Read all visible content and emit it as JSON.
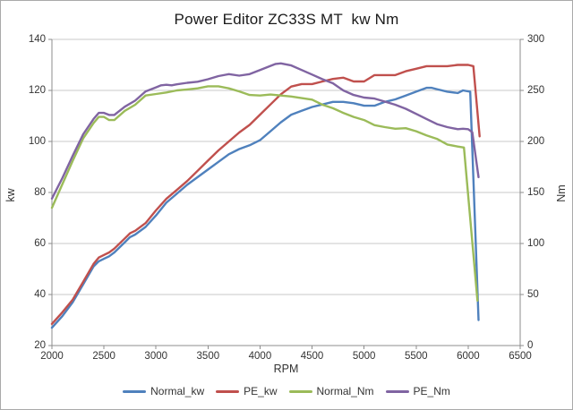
{
  "chart_data": {
    "type": "line",
    "title": "Power Editor ZC33S MT  kw Nm",
    "xlabel": "RPM",
    "ylabel_left": "kw",
    "ylabel_right": "Nm",
    "x_range": [
      2000,
      6500
    ],
    "x_ticks": [
      2000,
      2500,
      3000,
      3500,
      4000,
      4500,
      5000,
      5500,
      6000,
      6500
    ],
    "y_left_range": [
      20,
      140
    ],
    "y_left_ticks": [
      20,
      40,
      60,
      80,
      100,
      120,
      140
    ],
    "y_right_range": [
      0,
      300
    ],
    "y_right_ticks": [
      0,
      50,
      100,
      150,
      200,
      250,
      300
    ],
    "grid": "horizontal",
    "legend_position": "bottom",
    "colors": {
      "normal_kw": "#4F81BD",
      "pe_kw": "#C0504D",
      "normal_nm": "#9BBB59",
      "pe_nm": "#8064A2",
      "gridline": "#C9C9C9",
      "axis": "#8C8C8C",
      "text": "#333333"
    },
    "series": [
      {
        "name": "Normal_kw",
        "axis": "left",
        "color": "#4F81BD",
        "points": [
          [
            2000,
            27
          ],
          [
            2100,
            31.5
          ],
          [
            2200,
            37
          ],
          [
            2300,
            44
          ],
          [
            2400,
            51
          ],
          [
            2450,
            53
          ],
          [
            2500,
            54
          ],
          [
            2550,
            55
          ],
          [
            2600,
            56.5
          ],
          [
            2700,
            60.5
          ],
          [
            2750,
            62.5
          ],
          [
            2800,
            63.5
          ],
          [
            2900,
            66.5
          ],
          [
            3000,
            71
          ],
          [
            3100,
            76
          ],
          [
            3200,
            79.5
          ],
          [
            3300,
            83
          ],
          [
            3400,
            86
          ],
          [
            3500,
            89
          ],
          [
            3600,
            92
          ],
          [
            3700,
            95
          ],
          [
            3800,
            97
          ],
          [
            3900,
            98.5
          ],
          [
            4000,
            100.5
          ],
          [
            4100,
            104
          ],
          [
            4200,
            107.5
          ],
          [
            4300,
            110.5
          ],
          [
            4400,
            112
          ],
          [
            4500,
            113.5
          ],
          [
            4600,
            114.5
          ],
          [
            4700,
            115.5
          ],
          [
            4800,
            115.5
          ],
          [
            4900,
            115
          ],
          [
            5000,
            114
          ],
          [
            5100,
            114
          ],
          [
            5200,
            115.5
          ],
          [
            5300,
            116.5
          ],
          [
            5400,
            118
          ],
          [
            5500,
            119.5
          ],
          [
            5600,
            121
          ],
          [
            5650,
            121
          ],
          [
            5700,
            120.5
          ],
          [
            5800,
            119.5
          ],
          [
            5900,
            119
          ],
          [
            5950,
            120
          ],
          [
            6020,
            119.5
          ],
          [
            6100,
            30
          ]
        ]
      },
      {
        "name": "PE_kw",
        "axis": "left",
        "color": "#C0504D",
        "points": [
          [
            2000,
            28.5
          ],
          [
            2100,
            33
          ],
          [
            2200,
            38
          ],
          [
            2300,
            45
          ],
          [
            2400,
            52
          ],
          [
            2450,
            54.5
          ],
          [
            2500,
            55.5
          ],
          [
            2550,
            56.5
          ],
          [
            2600,
            58
          ],
          [
            2700,
            62
          ],
          [
            2750,
            64
          ],
          [
            2800,
            65
          ],
          [
            2900,
            68
          ],
          [
            3000,
            73
          ],
          [
            3100,
            77.5
          ],
          [
            3200,
            81
          ],
          [
            3300,
            84.5
          ],
          [
            3400,
            88.5
          ],
          [
            3500,
            92.5
          ],
          [
            3600,
            96.5
          ],
          [
            3700,
            100
          ],
          [
            3800,
            103.5
          ],
          [
            3900,
            106.5
          ],
          [
            4000,
            110.5
          ],
          [
            4100,
            114.5
          ],
          [
            4200,
            118.5
          ],
          [
            4300,
            121.5
          ],
          [
            4400,
            122.5
          ],
          [
            4500,
            122.5
          ],
          [
            4600,
            123.5
          ],
          [
            4700,
            124.5
          ],
          [
            4800,
            125
          ],
          [
            4900,
            123.5
          ],
          [
            5000,
            123.5
          ],
          [
            5100,
            126
          ],
          [
            5200,
            126
          ],
          [
            5300,
            126
          ],
          [
            5400,
            127.5
          ],
          [
            5500,
            128.5
          ],
          [
            5600,
            129.5
          ],
          [
            5700,
            129.5
          ],
          [
            5800,
            129.5
          ],
          [
            5900,
            130
          ],
          [
            6000,
            130
          ],
          [
            6050,
            129.5
          ],
          [
            6110,
            102
          ]
        ]
      },
      {
        "name": "Normal_Nm",
        "axis": "right",
        "color": "#9BBB59",
        "points": [
          [
            2000,
            135
          ],
          [
            2100,
            158
          ],
          [
            2200,
            181
          ],
          [
            2300,
            203
          ],
          [
            2400,
            218
          ],
          [
            2450,
            224
          ],
          [
            2500,
            224
          ],
          [
            2550,
            221
          ],
          [
            2600,
            221
          ],
          [
            2700,
            230
          ],
          [
            2800,
            236
          ],
          [
            2900,
            245
          ],
          [
            3000,
            246.5
          ],
          [
            3100,
            248
          ],
          [
            3200,
            250
          ],
          [
            3300,
            251
          ],
          [
            3400,
            252
          ],
          [
            3500,
            254
          ],
          [
            3600,
            254
          ],
          [
            3700,
            252
          ],
          [
            3800,
            249
          ],
          [
            3900,
            245.5
          ],
          [
            4000,
            245
          ],
          [
            4100,
            246
          ],
          [
            4200,
            245
          ],
          [
            4300,
            244
          ],
          [
            4400,
            242.5
          ],
          [
            4500,
            241
          ],
          [
            4600,
            236
          ],
          [
            4700,
            232.5
          ],
          [
            4800,
            228
          ],
          [
            4900,
            224
          ],
          [
            5000,
            221
          ],
          [
            5100,
            216
          ],
          [
            5200,
            214
          ],
          [
            5300,
            212.5
          ],
          [
            5400,
            213
          ],
          [
            5500,
            210
          ],
          [
            5600,
            206
          ],
          [
            5700,
            202.5
          ],
          [
            5800,
            197
          ],
          [
            5900,
            195
          ],
          [
            5960,
            194
          ],
          [
            6090,
            44
          ]
        ]
      },
      {
        "name": "PE_Nm",
        "axis": "right",
        "color": "#8064A2",
        "points": [
          [
            2000,
            144
          ],
          [
            2100,
            164
          ],
          [
            2200,
            186
          ],
          [
            2300,
            207
          ],
          [
            2400,
            222
          ],
          [
            2450,
            228
          ],
          [
            2500,
            228
          ],
          [
            2550,
            226
          ],
          [
            2600,
            226
          ],
          [
            2700,
            234
          ],
          [
            2800,
            240
          ],
          [
            2900,
            249
          ],
          [
            3000,
            253
          ],
          [
            3050,
            255
          ],
          [
            3100,
            255.5
          ],
          [
            3150,
            255
          ],
          [
            3200,
            256
          ],
          [
            3300,
            257.5
          ],
          [
            3400,
            258.5
          ],
          [
            3500,
            261
          ],
          [
            3600,
            264
          ],
          [
            3700,
            266
          ],
          [
            3800,
            264.5
          ],
          [
            3900,
            266
          ],
          [
            4000,
            270
          ],
          [
            4100,
            274
          ],
          [
            4150,
            276
          ],
          [
            4200,
            276.5
          ],
          [
            4300,
            274.5
          ],
          [
            4400,
            270
          ],
          [
            4500,
            265.5
          ],
          [
            4600,
            261
          ],
          [
            4700,
            257
          ],
          [
            4800,
            250
          ],
          [
            4900,
            245.5
          ],
          [
            5000,
            243
          ],
          [
            5100,
            242
          ],
          [
            5200,
            239
          ],
          [
            5300,
            236
          ],
          [
            5400,
            232
          ],
          [
            5500,
            227
          ],
          [
            5600,
            222
          ],
          [
            5700,
            217
          ],
          [
            5800,
            214
          ],
          [
            5900,
            212
          ],
          [
            5950,
            212.5
          ],
          [
            6000,
            212
          ],
          [
            6040,
            209
          ],
          [
            6100,
            165
          ]
        ]
      }
    ]
  }
}
